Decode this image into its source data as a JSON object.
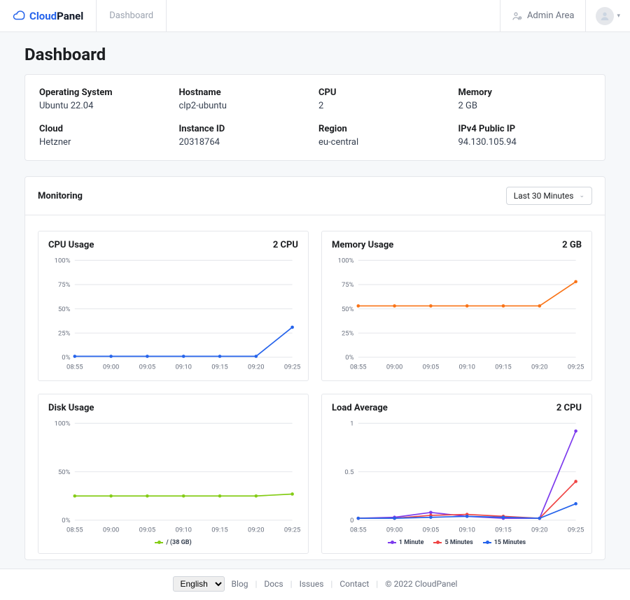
{
  "brand": {
    "cloud": "Cloud",
    "panel": "Panel"
  },
  "nav": {
    "dashboard": "Dashboard"
  },
  "header": {
    "admin_area": "Admin Area"
  },
  "page": {
    "title": "Dashboard"
  },
  "info": {
    "os_label": "Operating System",
    "os_value": "Ubuntu 22.04",
    "hostname_label": "Hostname",
    "hostname_value": "clp2-ubuntu",
    "cpu_label": "CPU",
    "cpu_value": "2",
    "memory_label": "Memory",
    "memory_value": "2 GB",
    "cloud_label": "Cloud",
    "cloud_value": "Hetzner",
    "instance_label": "Instance ID",
    "instance_value": "20318764",
    "region_label": "Region",
    "region_value": "eu-central",
    "ip_label": "IPv4 Public IP",
    "ip_value": "94.130.105.94"
  },
  "monitoring": {
    "title": "Monitoring",
    "range": "Last 30 Minutes"
  },
  "charts": {
    "common": {
      "x_labels": [
        "08:55",
        "09:00",
        "09:05",
        "09:10",
        "09:15",
        "09:20",
        "09:25"
      ],
      "grid_color": "#e5e7eb",
      "axis_text_color": "#6b7280",
      "axis_fontsize": 9,
      "background": "#ffffff"
    },
    "cpu": {
      "title": "CPU Usage",
      "subtitle": "2 CPU",
      "type": "line",
      "ylim": [
        0,
        100
      ],
      "yticks": [
        0,
        25,
        50,
        75,
        100
      ],
      "ytick_labels": [
        "0%",
        "25%",
        "50%",
        "75%",
        "100%"
      ],
      "series": [
        {
          "color": "#2563eb",
          "values": [
            1,
            1,
            1,
            1,
            1,
            1,
            31
          ],
          "marker": "dot"
        }
      ]
    },
    "memory": {
      "title": "Memory Usage",
      "subtitle": "2 GB",
      "type": "line",
      "ylim": [
        0,
        100
      ],
      "yticks": [
        0,
        25,
        50,
        75,
        100
      ],
      "ytick_labels": [
        "0%",
        "25%",
        "50%",
        "75%",
        "100%"
      ],
      "series": [
        {
          "color": "#f97316",
          "values": [
            53,
            53,
            53,
            53,
            53,
            53,
            78
          ],
          "marker": "dot"
        }
      ]
    },
    "disk": {
      "title": "Disk Usage",
      "subtitle": "",
      "type": "line",
      "ylim": [
        0,
        100
      ],
      "yticks": [
        0,
        50,
        100
      ],
      "ytick_labels": [
        "0%",
        "50%",
        "100%"
      ],
      "series": [
        {
          "color": "#84cc16",
          "values": [
            25,
            25,
            25,
            25,
            25,
            25,
            27
          ],
          "marker": "dot"
        }
      ],
      "legend": [
        {
          "label": "/  (38 GB)",
          "color": "#84cc16"
        }
      ]
    },
    "load": {
      "title": "Load Average",
      "subtitle": "2 CPU",
      "type": "line",
      "ylim": [
        0,
        1
      ],
      "yticks": [
        0,
        0.5,
        1
      ],
      "ytick_labels": [
        "0",
        "0.5",
        "1"
      ],
      "series": [
        {
          "color": "#7c3aed",
          "values": [
            0.02,
            0.03,
            0.08,
            0.04,
            0.02,
            0.02,
            0.92
          ],
          "marker": "dot"
        },
        {
          "color": "#ef4444",
          "values": [
            0.02,
            0.02,
            0.05,
            0.06,
            0.04,
            0.02,
            0.4
          ],
          "marker": "dot"
        },
        {
          "color": "#2563eb",
          "values": [
            0.02,
            0.02,
            0.03,
            0.04,
            0.03,
            0.02,
            0.17
          ],
          "marker": "dot"
        }
      ],
      "legend": [
        {
          "label": "1 Minute",
          "color": "#7c3aed"
        },
        {
          "label": "5 Minutes",
          "color": "#ef4444"
        },
        {
          "label": "15 Minutes",
          "color": "#2563eb"
        }
      ]
    }
  },
  "footer": {
    "lang": "English",
    "links": {
      "blog": "Blog",
      "docs": "Docs",
      "issues": "Issues",
      "contact": "Contact"
    },
    "copyright": "© 2022  CloudPanel"
  }
}
